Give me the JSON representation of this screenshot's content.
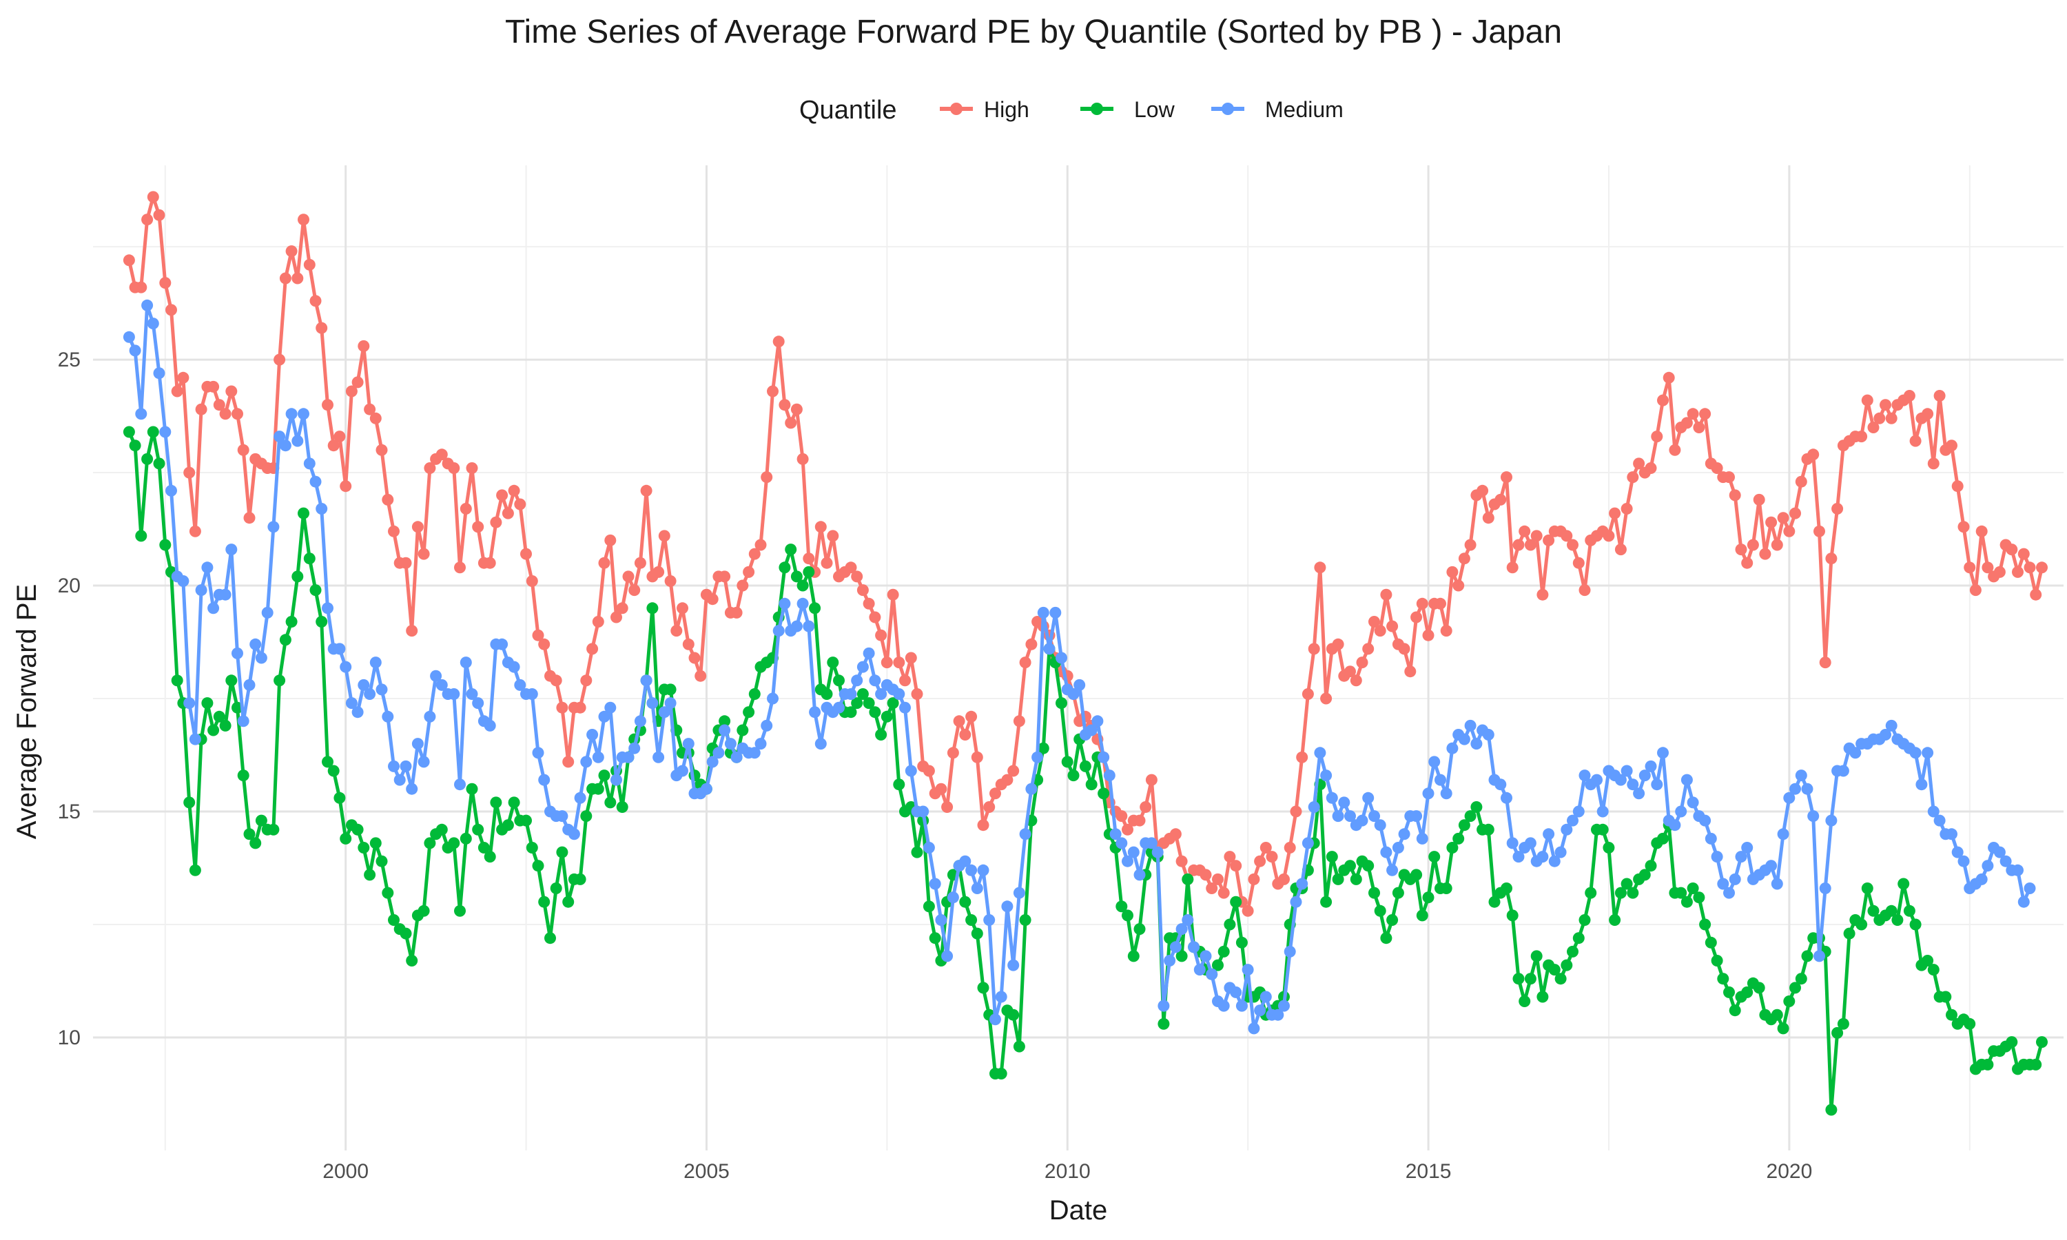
{
  "chart_data": {
    "type": "line",
    "title": "Time Series of Average Forward PE by Quantile (Sorted by PB ) - Japan",
    "xlabel": "Date",
    "ylabel": "Average Forward PE",
    "xlim": [
      1996.5,
      2023.8
    ],
    "ylim": [
      7.5,
      29.3
    ],
    "x_ticks": [
      2000,
      2005,
      2010,
      2015,
      2020
    ],
    "y_ticks": [
      10,
      15,
      20,
      25
    ],
    "grid": true,
    "legend": {
      "title": "Quantile",
      "position": "top"
    },
    "x_start": 1997.0,
    "x_step": 0.08333,
    "series": [
      {
        "name": "High",
        "color": "#F8766D",
        "values": [
          27.2,
          26.6,
          26.6,
          28.1,
          28.6,
          28.2,
          26.7,
          26.1,
          24.3,
          24.6,
          22.5,
          21.2,
          23.9,
          24.4,
          24.4,
          24.0,
          23.8,
          24.3,
          23.8,
          23.0,
          21.5,
          22.8,
          22.7,
          22.6,
          22.6,
          25.0,
          26.8,
          27.4,
          26.8,
          28.1,
          27.1,
          26.3,
          25.7,
          24.0,
          23.1,
          23.3,
          22.2,
          24.3,
          24.5,
          25.3,
          23.9,
          23.7,
          23.0,
          21.9,
          21.2,
          20.5,
          20.5,
          19.0,
          21.3,
          20.7,
          22.6,
          22.8,
          22.9,
          22.7,
          22.6,
          20.4,
          21.7,
          22.6,
          21.3,
          20.5,
          20.5,
          21.4,
          22.0,
          21.6,
          22.1,
          21.8,
          20.7,
          20.1,
          18.9,
          18.7,
          18.0,
          17.9,
          17.3,
          16.1,
          17.3,
          17.3,
          17.9,
          18.6,
          19.2,
          20.5,
          21.0,
          19.3,
          19.5,
          20.2,
          19.9,
          20.5,
          22.1,
          20.2,
          20.3,
          21.1,
          20.1,
          19.0,
          19.5,
          18.7,
          18.4,
          18.0,
          19.8,
          19.7,
          20.2,
          20.2,
          19.4,
          19.4,
          20.0,
          20.3,
          20.7,
          20.9,
          22.4,
          24.3,
          25.4,
          24.0,
          23.6,
          23.9,
          22.8,
          20.6,
          20.3,
          21.3,
          20.5,
          21.1,
          20.2,
          20.3,
          20.4,
          20.2,
          19.9,
          19.6,
          19.3,
          18.9,
          18.3,
          19.8,
          18.3,
          17.9,
          18.4,
          17.6,
          16.0,
          15.9,
          15.4,
          15.5,
          15.1,
          16.3,
          17.0,
          16.7,
          17.1,
          16.2,
          14.7,
          15.1,
          15.4,
          15.6,
          15.7,
          15.9,
          17.0,
          18.3,
          18.7,
          19.2,
          19.1,
          18.9,
          18.4,
          18.1,
          18.0,
          17.6,
          17.0,
          17.1,
          16.9,
          16.6,
          16.2,
          15.2,
          15.0,
          14.9,
          14.6,
          14.8,
          14.8,
          15.1,
          15.7,
          14.0,
          14.3,
          14.4,
          14.5,
          13.9,
          13.5,
          13.7,
          13.7,
          13.6,
          13.3,
          13.5,
          13.2,
          14.0,
          13.8,
          13.0,
          12.8,
          13.5,
          13.9,
          14.2,
          14.0,
          13.4,
          13.5,
          14.2,
          15.0,
          16.2,
          17.6,
          18.6,
          20.4,
          17.5,
          18.6,
          18.7,
          18.0,
          18.1,
          17.9,
          18.3,
          18.6,
          19.2,
          19.0,
          19.8,
          19.1,
          18.7,
          18.6,
          18.1,
          19.3,
          19.6,
          18.9,
          19.6,
          19.6,
          19.0,
          20.3,
          20.0,
          20.6,
          20.9,
          22.0,
          22.1,
          21.5,
          21.8,
          21.9,
          22.4,
          20.4,
          20.9,
          21.2,
          20.9,
          21.1,
          19.8,
          21.0,
          21.2,
          21.2,
          21.1,
          20.9,
          20.5,
          19.9,
          21.0,
          21.1,
          21.2,
          21.1,
          21.6,
          20.8,
          21.7,
          22.4,
          22.7,
          22.5,
          22.6,
          23.3,
          24.1,
          24.6,
          23.0,
          23.5,
          23.6,
          23.8,
          23.5,
          23.8,
          22.7,
          22.6,
          22.4,
          22.4,
          22.0,
          20.8,
          20.5,
          20.9,
          21.9,
          20.7,
          21.4,
          20.9,
          21.5,
          21.2,
          21.6,
          22.3,
          22.8,
          22.9,
          21.2,
          18.3,
          20.6,
          21.7,
          23.1,
          23.2,
          23.3,
          23.3,
          24.1,
          23.5,
          23.7,
          24.0,
          23.7,
          24.0,
          24.1,
          24.2,
          23.2,
          23.7,
          23.8,
          22.7,
          24.2,
          23.0,
          23.1,
          22.2,
          21.3,
          20.4,
          19.9,
          21.2,
          20.4,
          20.2,
          20.3,
          20.9,
          20.8,
          20.3,
          20.7,
          20.4,
          19.8,
          20.4
        ]
      },
      {
        "name": "Low",
        "color": "#00BA38",
        "values": [
          23.4,
          23.1,
          21.1,
          22.8,
          23.4,
          22.7,
          20.9,
          20.3,
          17.9,
          17.4,
          15.2,
          13.7,
          16.6,
          17.4,
          16.8,
          17.1,
          16.9,
          17.9,
          17.3,
          15.8,
          14.5,
          14.3,
          14.8,
          14.6,
          14.6,
          17.9,
          18.8,
          19.2,
          20.2,
          21.6,
          20.6,
          19.9,
          19.2,
          16.1,
          15.9,
          15.3,
          14.4,
          14.7,
          14.6,
          14.2,
          13.6,
          14.3,
          13.9,
          13.2,
          12.6,
          12.4,
          12.3,
          11.7,
          12.7,
          12.8,
          14.3,
          14.5,
          14.6,
          14.2,
          14.3,
          12.8,
          14.4,
          15.5,
          14.6,
          14.2,
          14.0,
          15.2,
          14.6,
          14.7,
          15.2,
          14.8,
          14.8,
          14.2,
          13.8,
          13.0,
          12.2,
          13.3,
          14.1,
          13.0,
          13.5,
          13.5,
          14.9,
          15.5,
          15.5,
          15.8,
          15.2,
          15.9,
          15.1,
          16.2,
          16.6,
          16.8,
          17.9,
          19.5,
          17.0,
          17.7,
          17.7,
          16.8,
          16.3,
          16.3,
          15.8,
          15.6,
          15.5,
          16.4,
          16.8,
          17.0,
          16.3,
          16.2,
          16.8,
          17.2,
          17.6,
          18.2,
          18.3,
          18.4,
          19.3,
          20.4,
          20.8,
          20.2,
          20.0,
          20.3,
          19.5,
          17.7,
          17.6,
          18.3,
          17.9,
          17.2,
          17.2,
          17.4,
          17.6,
          17.4,
          17.2,
          16.7,
          17.1,
          17.4,
          15.6,
          15.0,
          15.1,
          14.1,
          14.8,
          12.9,
          12.2,
          11.7,
          13.0,
          13.6,
          13.8,
          13.0,
          12.6,
          12.3,
          11.1,
          10.5,
          9.2,
          9.2,
          10.6,
          10.5,
          9.8,
          12.6,
          14.8,
          15.7,
          16.4,
          18.6,
          18.3,
          17.4,
          16.1,
          15.8,
          16.6,
          16.0,
          15.6,
          16.2,
          15.4,
          14.5,
          14.2,
          12.9,
          12.7,
          11.8,
          12.4,
          13.6,
          14.1,
          14.0,
          10.3,
          12.2,
          12.2,
          11.8,
          13.5,
          12.0,
          11.9,
          11.5,
          11.4,
          11.6,
          11.9,
          12.5,
          13.0,
          12.1,
          10.9,
          10.9,
          11.0,
          10.5,
          10.6,
          10.7,
          10.9,
          12.5,
          13.3,
          13.3,
          13.7,
          14.3,
          15.6,
          13.0,
          14.0,
          13.5,
          13.7,
          13.8,
          13.5,
          13.9,
          13.8,
          13.2,
          12.8,
          12.2,
          12.6,
          13.2,
          13.6,
          13.5,
          13.6,
          12.7,
          13.1,
          14.0,
          13.3,
          13.3,
          14.2,
          14.4,
          14.7,
          14.9,
          15.1,
          14.6,
          14.6,
          13.0,
          13.2,
          13.3,
          12.7,
          11.3,
          10.8,
          11.3,
          11.8,
          10.9,
          11.6,
          11.5,
          11.3,
          11.6,
          11.9,
          12.2,
          12.6,
          13.2,
          14.6,
          14.6,
          14.2,
          12.6,
          13.2,
          13.4,
          13.2,
          13.5,
          13.6,
          13.8,
          14.3,
          14.4,
          14.7,
          13.2,
          13.2,
          13.0,
          13.3,
          13.1,
          12.5,
          12.1,
          11.7,
          11.3,
          11.0,
          10.6,
          10.9,
          11.0,
          11.2,
          11.1,
          10.5,
          10.4,
          10.5,
          10.2,
          10.8,
          11.1,
          11.3,
          11.8,
          12.2,
          12.2,
          11.9,
          8.4,
          10.1,
          10.3,
          12.3,
          12.6,
          12.5,
          13.3,
          12.8,
          12.6,
          12.7,
          12.8,
          12.6,
          13.4,
          12.8,
          12.5,
          11.6,
          11.7,
          11.5,
          10.9,
          10.9,
          10.5,
          10.3,
          10.4,
          10.3,
          9.3,
          9.4,
          9.4,
          9.7,
          9.7,
          9.8,
          9.9,
          9.3,
          9.4,
          9.4,
          9.4,
          9.9
        ]
      },
      {
        "name": "Medium",
        "color": "#619CFF",
        "values": [
          25.5,
          25.2,
          23.8,
          26.2,
          25.8,
          24.7,
          23.4,
          22.1,
          20.2,
          20.1,
          17.4,
          16.6,
          19.9,
          20.4,
          19.5,
          19.8,
          19.8,
          20.8,
          18.5,
          17.0,
          17.8,
          18.7,
          18.4,
          19.4,
          21.3,
          23.3,
          23.1,
          23.8,
          23.2,
          23.8,
          22.7,
          22.3,
          21.7,
          19.5,
          18.6,
          18.6,
          18.2,
          17.4,
          17.2,
          17.8,
          17.6,
          18.3,
          17.7,
          17.1,
          16.0,
          15.7,
          16.0,
          15.5,
          16.5,
          16.1,
          17.1,
          18.0,
          17.8,
          17.6,
          17.6,
          15.6,
          18.3,
          17.6,
          17.4,
          17.0,
          16.9,
          18.7,
          18.7,
          18.3,
          18.2,
          17.8,
          17.6,
          17.6,
          16.3,
          15.7,
          15.0,
          14.9,
          14.9,
          14.6,
          14.5,
          15.3,
          16.1,
          16.7,
          16.2,
          17.1,
          17.3,
          15.7,
          16.2,
          16.2,
          16.4,
          17.0,
          17.9,
          17.4,
          16.2,
          17.2,
          17.4,
          15.8,
          15.9,
          16.5,
          15.4,
          15.4,
          15.5,
          16.1,
          16.3,
          16.8,
          16.5,
          16.2,
          16.4,
          16.3,
          16.3,
          16.5,
          16.9,
          17.5,
          19.0,
          19.6,
          19.0,
          19.1,
          19.6,
          19.1,
          17.2,
          16.5,
          17.3,
          17.2,
          17.3,
          17.6,
          17.6,
          17.9,
          18.2,
          18.5,
          17.9,
          17.6,
          17.8,
          17.7,
          17.6,
          17.3,
          15.9,
          15.0,
          15.0,
          14.2,
          13.4,
          12.6,
          11.8,
          13.1,
          13.8,
          13.9,
          13.7,
          13.3,
          13.7,
          12.6,
          10.4,
          10.9,
          12.9,
          11.6,
          13.2,
          14.5,
          15.5,
          16.2,
          19.4,
          18.6,
          19.4,
          18.4,
          17.7,
          17.6,
          17.8,
          16.7,
          16.8,
          17.0,
          16.2,
          15.8,
          14.5,
          14.3,
          13.9,
          14.1,
          13.6,
          14.3,
          14.3,
          14.1,
          10.7,
          11.7,
          12.0,
          12.4,
          12.6,
          12.0,
          11.5,
          11.8,
          11.4,
          10.8,
          10.7,
          11.1,
          11.0,
          10.7,
          11.5,
          10.2,
          10.6,
          10.9,
          10.5,
          10.5,
          10.7,
          11.9,
          13.0,
          13.4,
          14.3,
          15.1,
          16.3,
          15.8,
          15.3,
          14.9,
          15.2,
          14.9,
          14.7,
          14.8,
          15.3,
          14.9,
          14.7,
          14.1,
          13.7,
          14.2,
          14.5,
          14.9,
          14.9,
          14.4,
          15.4,
          16.1,
          15.7,
          15.4,
          16.4,
          16.7,
          16.6,
          16.9,
          16.5,
          16.8,
          16.7,
          15.7,
          15.6,
          15.3,
          14.3,
          14.0,
          14.2,
          14.3,
          13.9,
          14.0,
          14.5,
          13.9,
          14.1,
          14.6,
          14.8,
          15.0,
          15.8,
          15.6,
          15.7,
          15.0,
          15.9,
          15.8,
          15.7,
          15.9,
          15.6,
          15.4,
          15.8,
          16.0,
          15.6,
          16.3,
          14.8,
          14.7,
          15.0,
          15.7,
          15.2,
          14.9,
          14.8,
          14.4,
          14.0,
          13.4,
          13.2,
          13.5,
          14.0,
          14.2,
          13.5,
          13.6,
          13.7,
          13.8,
          13.4,
          14.5,
          15.3,
          15.5,
          15.8,
          15.5,
          14.9,
          11.8,
          13.3,
          14.8,
          15.9,
          15.9,
          16.4,
          16.3,
          16.5,
          16.5,
          16.6,
          16.6,
          16.7,
          16.9,
          16.6,
          16.5,
          16.4,
          16.3,
          15.6,
          16.3,
          15.0,
          14.8,
          14.5,
          14.5,
          14.1,
          13.9,
          13.3,
          13.4,
          13.5,
          13.8,
          14.2,
          14.1,
          13.9,
          13.7,
          13.7,
          13.0,
          13.3
        ]
      }
    ]
  }
}
